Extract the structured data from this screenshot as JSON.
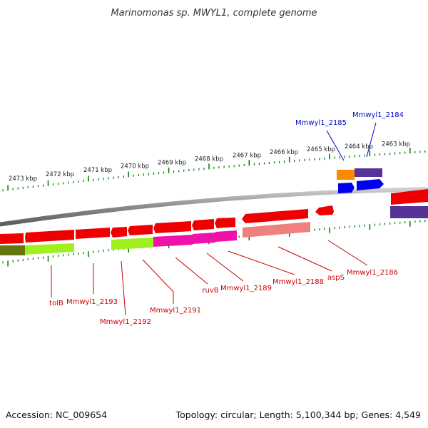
{
  "title": "Marinomonas sp. MWYL1, complete genome",
  "footer": {
    "accession": "Accession: NC_009654",
    "summary": "Topology: circular; Length: 5,100,344 bp; Genes: 4,549"
  },
  "scale_ticks": [
    "2473 kbp",
    "2472 kbp",
    "2471 kbp",
    "2470 kbp",
    "2469 kbp",
    "2468 kbp",
    "2467 kbp",
    "2466 kbp",
    "2465 kbp",
    "2464 kbp",
    "2463 kbp"
  ],
  "gene_labels_forward": [
    "Mmwyl1_2185",
    "Mmwyl1_2184"
  ],
  "gene_labels_reverse": [
    "tolB",
    "Mmwyl1_2193",
    "Mmwyl1_2192",
    "Mmwyl1_2191",
    "ruvB",
    "Mmwyl1_2189",
    "Mmwyl1_2188",
    "aspS",
    "Mmwyl1_2186"
  ],
  "colors": {
    "cds": "#ee0000",
    "cds_light": "#f08080",
    "backbone": "#888888",
    "tick": "#007700",
    "label_forward": "#0000cc",
    "label_reverse": "#cc0000",
    "lime": "#a0f020",
    "magenta": "#ee11aa",
    "purple": "#553399",
    "orange": "#ff8800",
    "blue": "#0000ee",
    "olive": "#667711"
  }
}
